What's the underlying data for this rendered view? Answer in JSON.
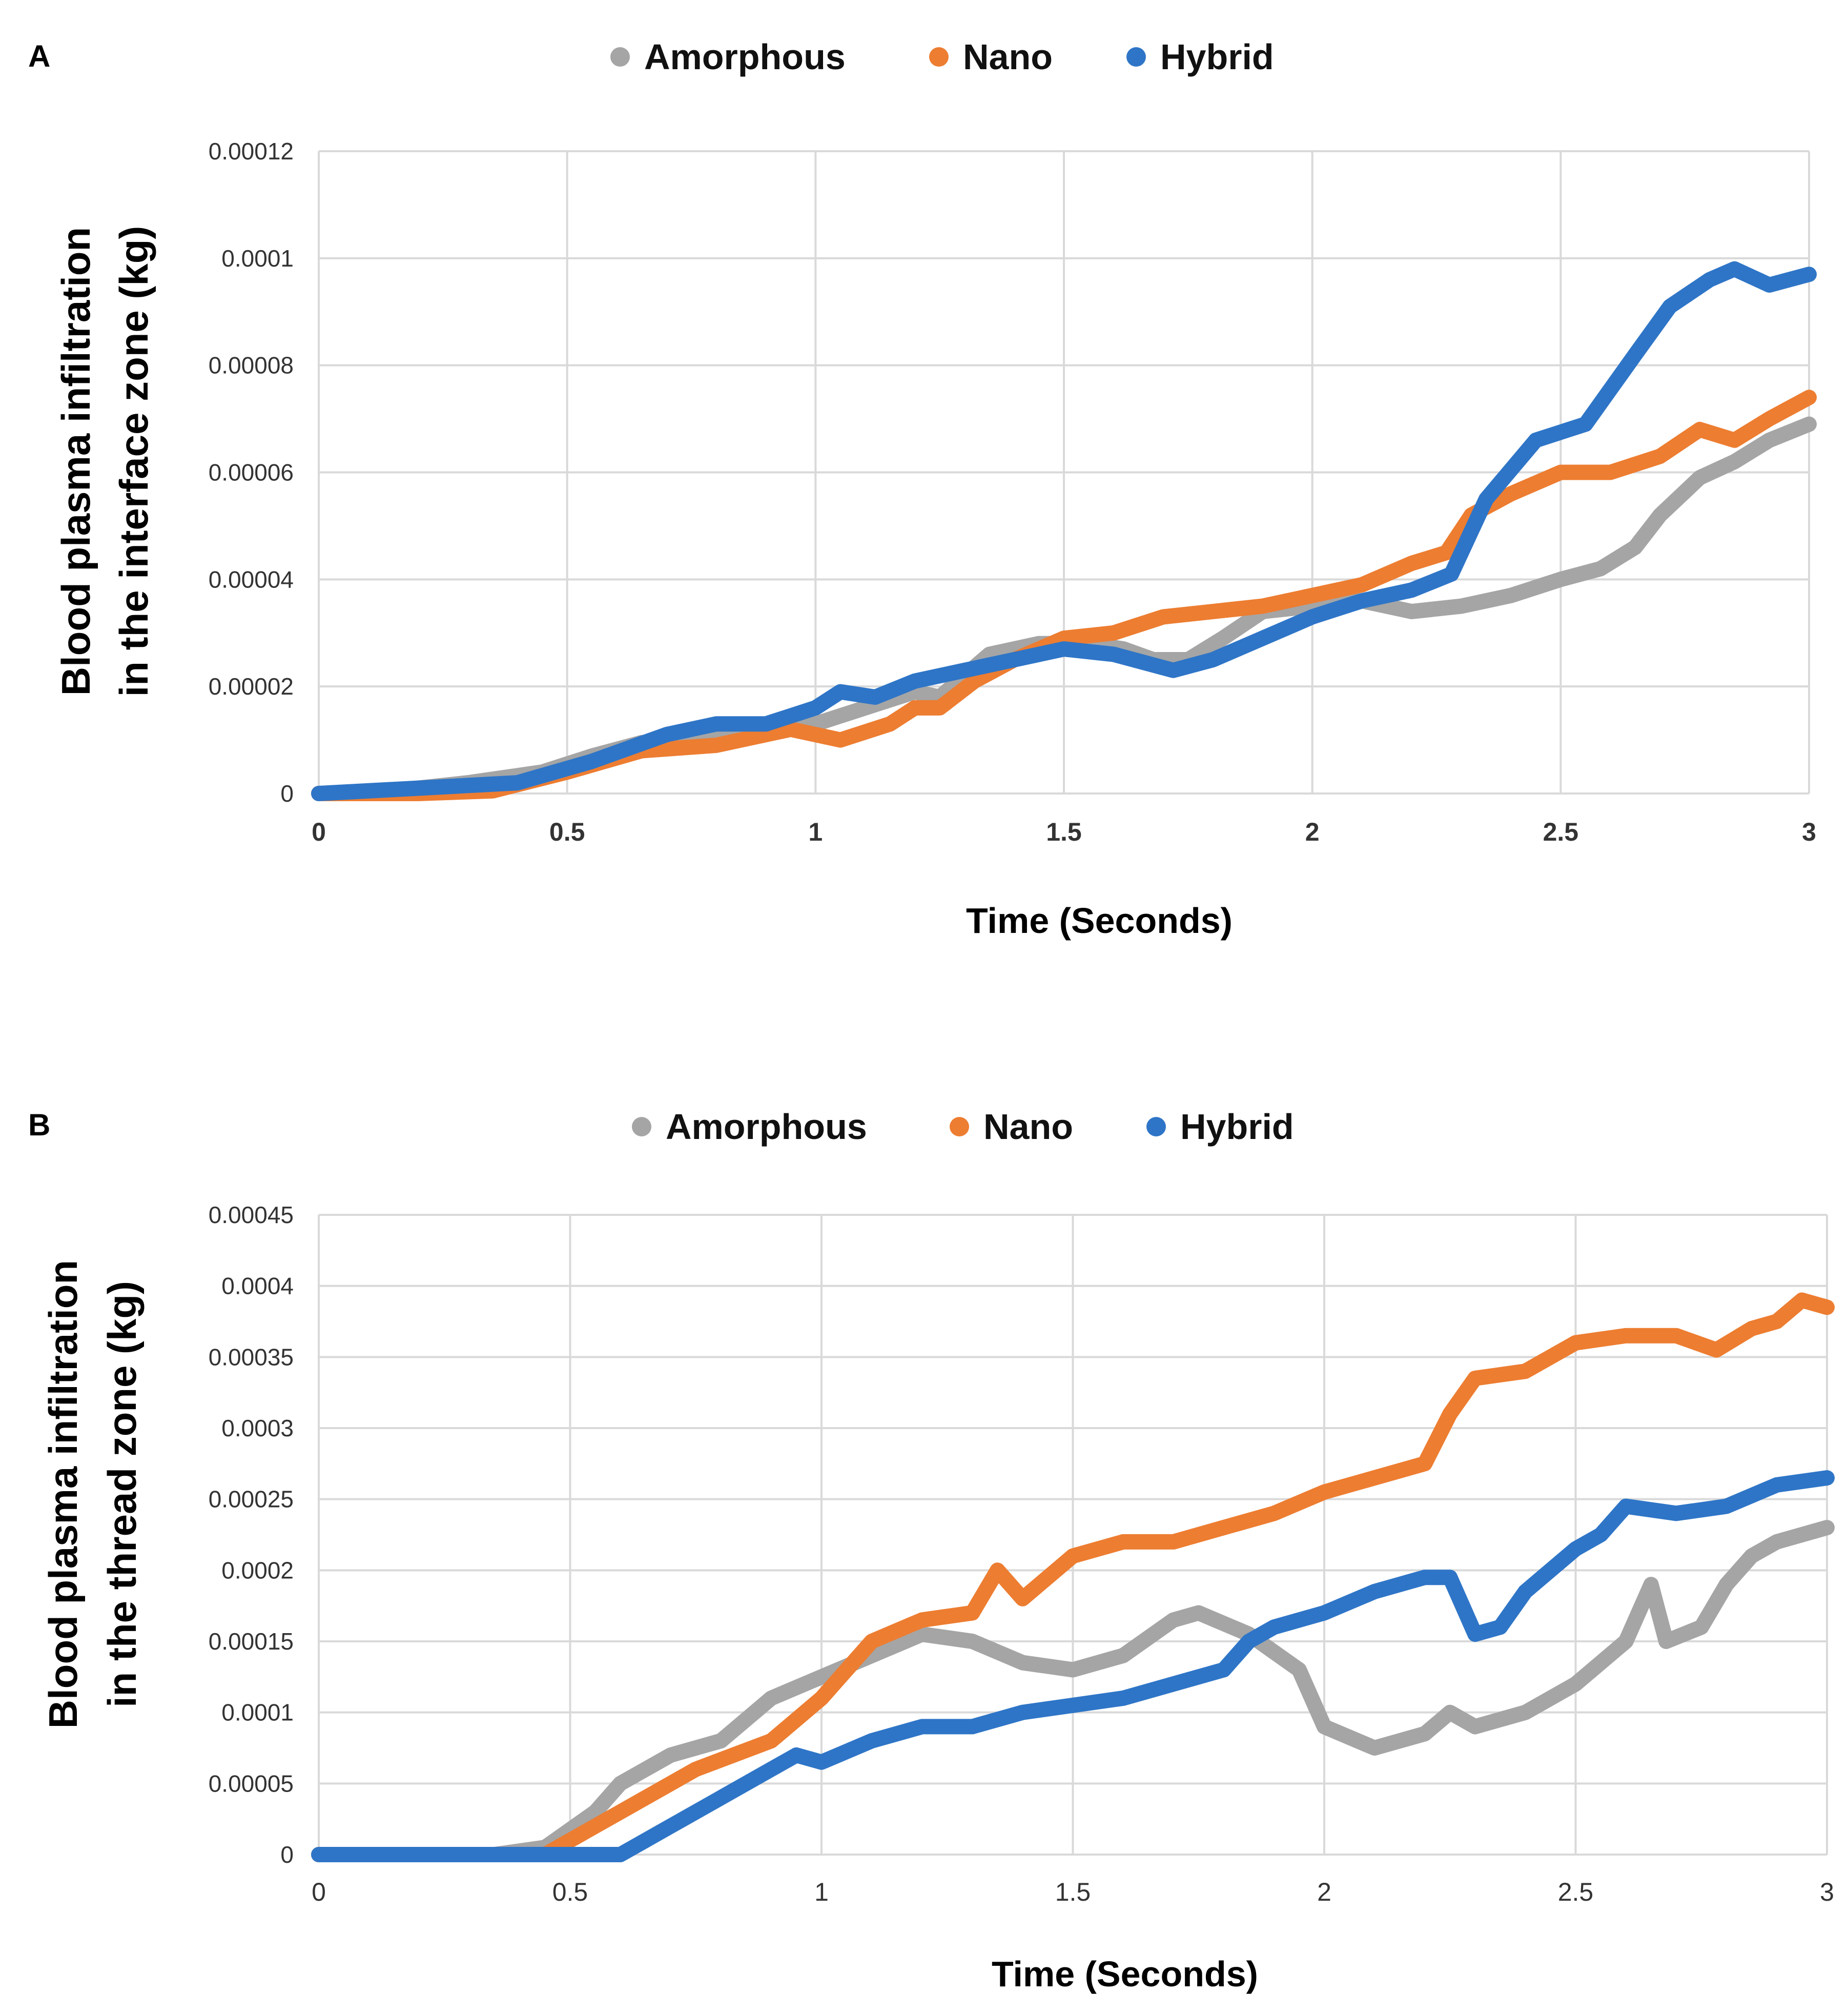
{
  "chart_data": [
    {
      "panel_label": "A",
      "type": "line",
      "title": "",
      "xlabel": "Time (Seconds)",
      "ylabel_lines": [
        "Blood plasma infiltration",
        "in the interface zone (kg)"
      ],
      "xlim": [
        0,
        3
      ],
      "ylim": [
        0,
        0.00012
      ],
      "x_ticks": [
        "0",
        "0.5",
        "1",
        "1.5",
        "2",
        "2.5",
        "3"
      ],
      "y_ticks": [
        "0",
        "0.00002",
        "0.00004",
        "0.00006",
        "0.00008",
        "0.0001",
        "0.00012"
      ],
      "legend": [
        "Amorphous",
        "Nano",
        "Hybrid"
      ],
      "legend_position": "top",
      "grid": true,
      "series": [
        {
          "name": "Amorphous",
          "color": "#a5a5a5",
          "points": [
            [
              0,
              0
            ],
            [
              0.15,
              5e-07
            ],
            [
              0.3,
              2e-06
            ],
            [
              0.45,
              4e-06
            ],
            [
              0.55,
              7e-06
            ],
            [
              0.65,
              9.5e-06
            ],
            [
              0.78,
              1e-05
            ],
            [
              0.9,
              1.2e-05
            ],
            [
              1.0,
              1.3e-05
            ],
            [
              1.1,
              1.6e-05
            ],
            [
              1.2,
              1.9e-05
            ],
            [
              1.25,
              1.8e-05
            ],
            [
              1.3,
              2.2e-05
            ],
            [
              1.35,
              2.6e-05
            ],
            [
              1.45,
              2.8e-05
            ],
            [
              1.55,
              2.8e-05
            ],
            [
              1.62,
              2.7e-05
            ],
            [
              1.68,
              2.5e-05
            ],
            [
              1.75,
              2.5e-05
            ],
            [
              1.82,
              2.9e-05
            ],
            [
              1.9,
              3.4e-05
            ],
            [
              2.0,
              3.5e-05
            ],
            [
              2.1,
              3.6e-05
            ],
            [
              2.2,
              3.4e-05
            ],
            [
              2.3,
              3.5e-05
            ],
            [
              2.4,
              3.7e-05
            ],
            [
              2.5,
              4e-05
            ],
            [
              2.58,
              4.2e-05
            ],
            [
              2.65,
              4.6e-05
            ],
            [
              2.7,
              5.2e-05
            ],
            [
              2.78,
              5.9e-05
            ],
            [
              2.85,
              6.2e-05
            ],
            [
              2.92,
              6.6e-05
            ],
            [
              3.0,
              6.9e-05
            ]
          ]
        },
        {
          "name": "Nano",
          "color": "#ed7d31",
          "points": [
            [
              0,
              0
            ],
            [
              0.2,
              0
            ],
            [
              0.35,
              5e-07
            ],
            [
              0.5,
              4e-06
            ],
            [
              0.65,
              8e-06
            ],
            [
              0.8,
              9e-06
            ],
            [
              0.95,
              1.2e-05
            ],
            [
              1.05,
              1e-05
            ],
            [
              1.15,
              1.3e-05
            ],
            [
              1.2,
              1.6e-05
            ],
            [
              1.25,
              1.6e-05
            ],
            [
              1.32,
              2.1e-05
            ],
            [
              1.4,
              2.5e-05
            ],
            [
              1.5,
              2.9e-05
            ],
            [
              1.6,
              3e-05
            ],
            [
              1.7,
              3.3e-05
            ],
            [
              1.8,
              3.4e-05
            ],
            [
              1.9,
              3.5e-05
            ],
            [
              2.0,
              3.7e-05
            ],
            [
              2.1,
              3.9e-05
            ],
            [
              2.2,
              4.3e-05
            ],
            [
              2.27,
              4.5e-05
            ],
            [
              2.32,
              5.2e-05
            ],
            [
              2.4,
              5.6e-05
            ],
            [
              2.5,
              6e-05
            ],
            [
              2.6,
              6e-05
            ],
            [
              2.7,
              6.3e-05
            ],
            [
              2.78,
              6.8e-05
            ],
            [
              2.85,
              6.6e-05
            ],
            [
              2.92,
              7e-05
            ],
            [
              3.0,
              7.4e-05
            ]
          ]
        },
        {
          "name": "Hybrid",
          "color": "#2e75c7",
          "points": [
            [
              0,
              0
            ],
            [
              0.2,
              1e-06
            ],
            [
              0.4,
              2e-06
            ],
            [
              0.55,
              6e-06
            ],
            [
              0.7,
              1.1e-05
            ],
            [
              0.8,
              1.3e-05
            ],
            [
              0.9,
              1.3e-05
            ],
            [
              1.0,
              1.6e-05
            ],
            [
              1.05,
              1.9e-05
            ],
            [
              1.12,
              1.8e-05
            ],
            [
              1.2,
              2.1e-05
            ],
            [
              1.3,
              2.3e-05
            ],
            [
              1.4,
              2.5e-05
            ],
            [
              1.5,
              2.7e-05
            ],
            [
              1.6,
              2.6e-05
            ],
            [
              1.72,
              2.3e-05
            ],
            [
              1.8,
              2.5e-05
            ],
            [
              1.9,
              2.9e-05
            ],
            [
              2.0,
              3.3e-05
            ],
            [
              2.1,
              3.6e-05
            ],
            [
              2.2,
              3.8e-05
            ],
            [
              2.28,
              4.1e-05
            ],
            [
              2.35,
              5.5e-05
            ],
            [
              2.45,
              6.6e-05
            ],
            [
              2.55,
              6.9e-05
            ],
            [
              2.65,
              8.2e-05
            ],
            [
              2.72,
              9.1e-05
            ],
            [
              2.8,
              9.6e-05
            ],
            [
              2.85,
              9.8e-05
            ],
            [
              2.92,
              9.5e-05
            ],
            [
              3.0,
              9.7e-05
            ]
          ]
        }
      ]
    },
    {
      "panel_label": "B",
      "type": "line",
      "title": "",
      "xlabel": "Time (Seconds)",
      "ylabel_lines": [
        "Blood plasma infiltration",
        "in the thread zone (kg)"
      ],
      "xlim": [
        0,
        3
      ],
      "ylim": [
        0,
        0.00045
      ],
      "x_ticks": [
        "0",
        "0.5",
        "1",
        "1.5",
        "2",
        "2.5",
        "3"
      ],
      "y_ticks": [
        "0",
        "0.00005",
        "0.0001",
        "0.00015",
        "0.0002",
        "0.00025",
        "0.0003",
        "0.00035",
        "0.0004",
        "0.00045"
      ],
      "legend": [
        "Amorphous",
        "Nano",
        "Hybrid"
      ],
      "legend_position": "top",
      "grid": true,
      "series": [
        {
          "name": "Amorphous",
          "color": "#a5a5a5",
          "points": [
            [
              0,
              0
            ],
            [
              0.35,
              0
            ],
            [
              0.45,
              5e-06
            ],
            [
              0.55,
              3e-05
            ],
            [
              0.6,
              5e-05
            ],
            [
              0.7,
              7e-05
            ],
            [
              0.8,
              8e-05
            ],
            [
              0.9,
              0.00011
            ],
            [
              1.0,
              0.000125
            ],
            [
              1.1,
              0.00014
            ],
            [
              1.2,
              0.000155
            ],
            [
              1.3,
              0.00015
            ],
            [
              1.4,
              0.000135
            ],
            [
              1.5,
              0.00013
            ],
            [
              1.6,
              0.00014
            ],
            [
              1.7,
              0.000165
            ],
            [
              1.75,
              0.00017
            ],
            [
              1.85,
              0.000155
            ],
            [
              1.95,
              0.00013
            ],
            [
              2.0,
              9e-05
            ],
            [
              2.1,
              7.5e-05
            ],
            [
              2.2,
              8.5e-05
            ],
            [
              2.25,
              0.0001
            ],
            [
              2.3,
              9e-05
            ],
            [
              2.4,
              0.0001
            ],
            [
              2.5,
              0.00012
            ],
            [
              2.6,
              0.00015
            ],
            [
              2.65,
              0.00019
            ],
            [
              2.68,
              0.00015
            ],
            [
              2.75,
              0.00016
            ],
            [
              2.8,
              0.00019
            ],
            [
              2.85,
              0.00021
            ],
            [
              2.9,
              0.00022
            ],
            [
              3.0,
              0.00023
            ]
          ]
        },
        {
          "name": "Nano",
          "color": "#ed7d31",
          "points": [
            [
              0,
              0
            ],
            [
              0.45,
              0
            ],
            [
              0.55,
              2e-05
            ],
            [
              0.65,
              4e-05
            ],
            [
              0.75,
              6e-05
            ],
            [
              0.9,
              8e-05
            ],
            [
              1.0,
              0.00011
            ],
            [
              1.1,
              0.00015
            ],
            [
              1.2,
              0.000165
            ],
            [
              1.3,
              0.00017
            ],
            [
              1.35,
              0.0002
            ],
            [
              1.4,
              0.00018
            ],
            [
              1.5,
              0.00021
            ],
            [
              1.6,
              0.00022
            ],
            [
              1.7,
              0.00022
            ],
            [
              1.8,
              0.00023
            ],
            [
              1.9,
              0.00024
            ],
            [
              2.0,
              0.000255
            ],
            [
              2.1,
              0.000265
            ],
            [
              2.2,
              0.000275
            ],
            [
              2.25,
              0.00031
            ],
            [
              2.3,
              0.000335
            ],
            [
              2.4,
              0.00034
            ],
            [
              2.5,
              0.00036
            ],
            [
              2.6,
              0.000365
            ],
            [
              2.7,
              0.000365
            ],
            [
              2.78,
              0.000355
            ],
            [
              2.85,
              0.00037
            ],
            [
              2.9,
              0.000375
            ],
            [
              2.95,
              0.00039
            ],
            [
              3.0,
              0.000385
            ]
          ]
        },
        {
          "name": "Hybrid",
          "color": "#2e75c7",
          "points": [
            [
              0,
              0
            ],
            [
              0.6,
              0
            ],
            [
              0.7,
              2e-05
            ],
            [
              0.8,
              4e-05
            ],
            [
              0.9,
              6e-05
            ],
            [
              0.95,
              7e-05
            ],
            [
              1.0,
              6.5e-05
            ],
            [
              1.1,
              8e-05
            ],
            [
              1.2,
              9e-05
            ],
            [
              1.3,
              9e-05
            ],
            [
              1.4,
              0.0001
            ],
            [
              1.5,
              0.000105
            ],
            [
              1.6,
              0.00011
            ],
            [
              1.7,
              0.00012
            ],
            [
              1.8,
              0.00013
            ],
            [
              1.85,
              0.00015
            ],
            [
              1.9,
              0.00016
            ],
            [
              2.0,
              0.00017
            ],
            [
              2.1,
              0.000185
            ],
            [
              2.2,
              0.000195
            ],
            [
              2.25,
              0.000195
            ],
            [
              2.3,
              0.000155
            ],
            [
              2.35,
              0.00016
            ],
            [
              2.4,
              0.000185
            ],
            [
              2.5,
              0.000215
            ],
            [
              2.55,
              0.000225
            ],
            [
              2.6,
              0.000245
            ],
            [
              2.7,
              0.00024
            ],
            [
              2.8,
              0.000245
            ],
            [
              2.9,
              0.00026
            ],
            [
              3.0,
              0.000265
            ]
          ]
        }
      ]
    }
  ]
}
